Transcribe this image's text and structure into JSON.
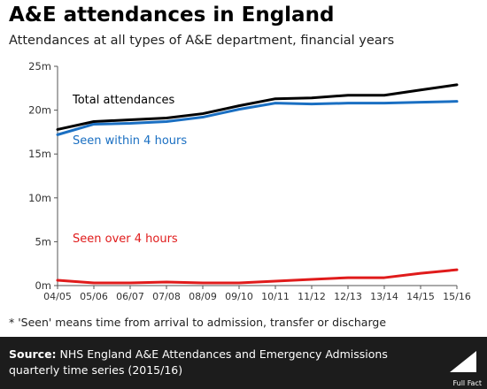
{
  "title": "A&E attendances in England",
  "subtitle": "Attendances at all types of A&E department, financial years",
  "footnote": "* 'Seen' means time from arrival to admission, transfer or discharge",
  "source": {
    "label": "Source:",
    "text": "NHS England A&E Attendances and Emergency Admissions quarterly time series (2015/16)"
  },
  "brand": {
    "name": "Full Fact",
    "logo_icon": "full-fact-chart-logo-icon"
  },
  "chart_data": {
    "type": "line",
    "categories": [
      "04/05",
      "05/06",
      "06/07",
      "07/08",
      "08/09",
      "09/10",
      "10/11",
      "11/12",
      "12/13",
      "13/14",
      "14/15",
      "15/16"
    ],
    "yticks": [
      "0m",
      "5m",
      "10m",
      "15m",
      "20m",
      "25m"
    ],
    "ylim": [
      0,
      25
    ],
    "grid": false,
    "series": [
      {
        "name": "Total attendances",
        "color": "#000000",
        "values": [
          17.8,
          18.7,
          18.9,
          19.1,
          19.6,
          20.5,
          21.3,
          21.4,
          21.7,
          21.7,
          22.3,
          22.9
        ]
      },
      {
        "name": "Seen within 4 hours",
        "color": "#1a6fc2",
        "values": [
          17.2,
          18.4,
          18.5,
          18.7,
          19.2,
          20.1,
          20.8,
          20.7,
          20.8,
          20.8,
          20.9,
          21.0
        ]
      },
      {
        "name": "Seen over 4 hours",
        "color": "#e01b1b",
        "values": [
          0.6,
          0.3,
          0.3,
          0.4,
          0.3,
          0.3,
          0.5,
          0.7,
          0.9,
          0.9,
          1.4,
          1.8
        ]
      }
    ]
  }
}
